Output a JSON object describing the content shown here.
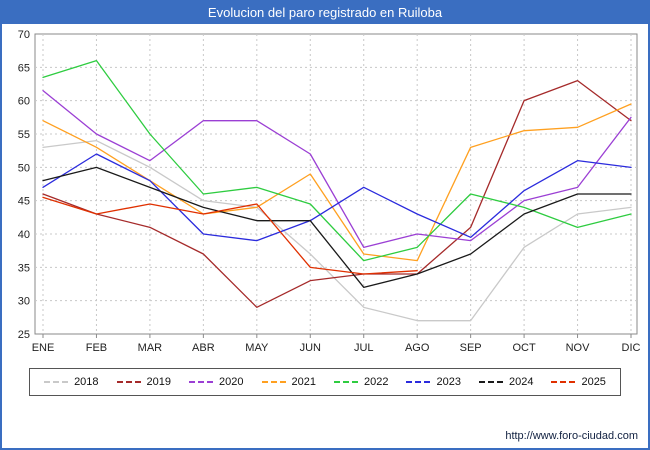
{
  "title": "Evolucion del paro registrado en Ruiloba",
  "footer": {
    "url": "http://www.foro-ciudad.com"
  },
  "colors": {
    "titlebar": "#3a6ec1",
    "frame": "#3a6ec1",
    "grid": "#c8c8c8",
    "axis": "#8a8a8a",
    "tick_text": "#222222"
  },
  "chart_data": {
    "type": "line",
    "title": "Evolucion del paro registrado en Ruiloba",
    "categories": [
      "ENE",
      "FEB",
      "MAR",
      "ABR",
      "MAY",
      "JUN",
      "JUL",
      "AGO",
      "SEP",
      "OCT",
      "NOV",
      "DIC"
    ],
    "ylim": [
      25,
      70
    ],
    "ytick_step": 5,
    "grid": true,
    "legend_position": "bottom",
    "series": [
      {
        "name": "2018",
        "color": "#c9c9c9",
        "values": [
          53,
          54,
          50,
          45,
          44,
          37,
          29,
          27,
          27,
          38,
          43,
          44
        ]
      },
      {
        "name": "2019",
        "color": "#a52a2a",
        "values": [
          46,
          43,
          41,
          37,
          29,
          33,
          34,
          34,
          41,
          60,
          63,
          57
        ]
      },
      {
        "name": "2020",
        "color": "#9b3fd4",
        "values": [
          61.5,
          55,
          51,
          57,
          57,
          52,
          38,
          40,
          39,
          45,
          47,
          57.5
        ]
      },
      {
        "name": "2021",
        "color": "#ffa020",
        "values": [
          57,
          53,
          48,
          43,
          44,
          49,
          37,
          36,
          53,
          55.5,
          56,
          59.5
        ]
      },
      {
        "name": "2022",
        "color": "#2ecc40",
        "values": [
          63.5,
          66,
          55,
          46,
          47,
          44.5,
          36,
          38,
          46,
          44,
          41,
          43
        ]
      },
      {
        "name": "2023",
        "color": "#2b2bdd",
        "values": [
          47,
          52,
          48,
          40,
          39,
          42,
          47,
          43,
          39.5,
          46.5,
          51,
          50
        ]
      },
      {
        "name": "2024",
        "color": "#1a1a1a",
        "values": [
          48,
          50,
          47,
          44,
          42,
          42,
          32,
          34,
          37,
          43,
          46,
          46
        ]
      },
      {
        "name": "2025",
        "color": "#e03000",
        "values": [
          45.5,
          43,
          44.5,
          43,
          44.5,
          35,
          34,
          34.5
        ]
      }
    ]
  }
}
